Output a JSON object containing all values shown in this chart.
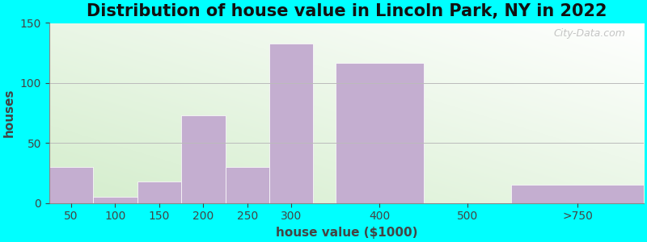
{
  "title": "Distribution of house value in Lincoln Park, NY in 2022",
  "xlabel": "house value ($1000)",
  "ylabel": "houses",
  "bar_labels": [
    "50",
    "100",
    "150",
    "200",
    "250",
    "300",
    "400",
    "500",
    ">750"
  ],
  "bar_left_edges": [
    25,
    75,
    125,
    175,
    225,
    275,
    350,
    450,
    550
  ],
  "bar_widths": [
    50,
    50,
    50,
    50,
    50,
    50,
    100,
    100,
    150
  ],
  "bar_heights": [
    30,
    5,
    18,
    73,
    30,
    133,
    117,
    0,
    15
  ],
  "bar_color": "#c4aed0",
  "bar_edgecolor": "#c4aed0",
  "ylim": [
    0,
    150
  ],
  "yticks": [
    0,
    50,
    100,
    150
  ],
  "xtick_positions": [
    50,
    100,
    150,
    200,
    250,
    300,
    400,
    500,
    625
  ],
  "xtick_labels": [
    "50",
    "100",
    "150",
    "200",
    "250",
    "300",
    "400",
    "500",
    ">750"
  ],
  "xlim": [
    25,
    700
  ],
  "outer_bg": "#00FFFF",
  "title_fontsize": 15,
  "axis_label_fontsize": 11,
  "tick_fontsize": 10,
  "watermark": "City-Data.com"
}
